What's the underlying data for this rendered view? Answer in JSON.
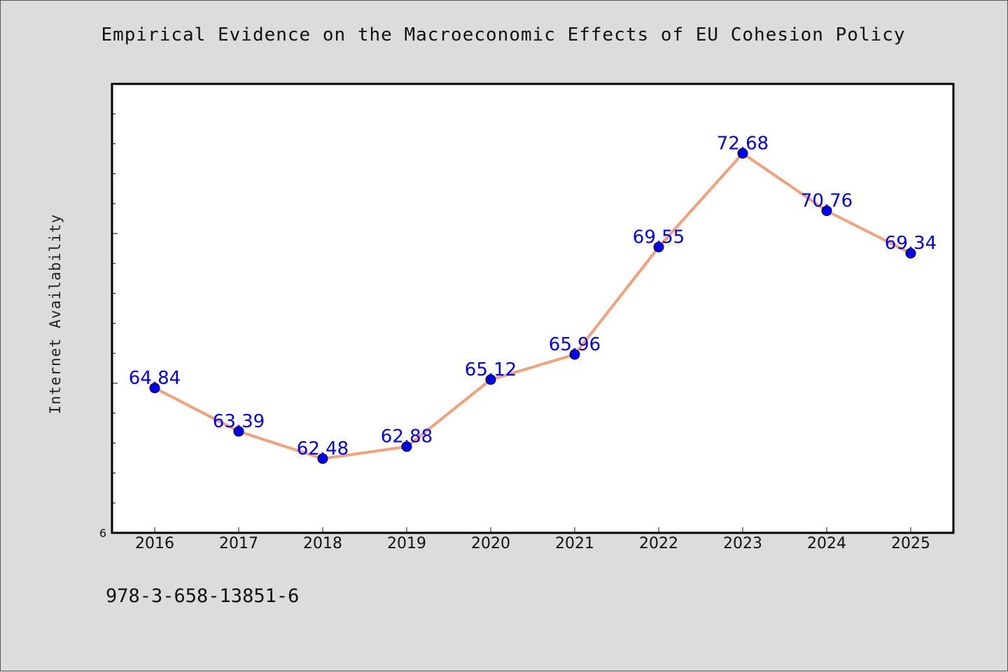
{
  "chart_data": {
    "type": "line",
    "title": "Empirical Evidence on the Macroeconomic Effects of EU Cohesion Policy",
    "xlabel": "",
    "ylabel": "Internet Availability",
    "categories": [
      "2016",
      "2017",
      "2018",
      "2019",
      "2020",
      "2021",
      "2022",
      "2023",
      "2024",
      "2025"
    ],
    "series": [
      {
        "values": [
          64.84,
          63.39,
          62.48,
          62.88,
          65.12,
          65.96,
          69.55,
          72.68,
          70.76,
          69.34
        ],
        "labels": [
          "64.84",
          "63.39",
          "62.48",
          "62.88",
          "65.12",
          "65.96",
          "69.55",
          "72.68",
          "70.76",
          "69.34"
        ],
        "line_color": "#f4a07a",
        "marker_color": "#0000ee"
      }
    ],
    "ylim": [
      60,
      75
    ],
    "y_major_tick_step": 5,
    "y_minor_tick_step": 1,
    "y_tick_labels_shown": [
      "6"
    ],
    "grid": false,
    "legend": "none",
    "footer_text": "978-3-658-13851-6"
  }
}
